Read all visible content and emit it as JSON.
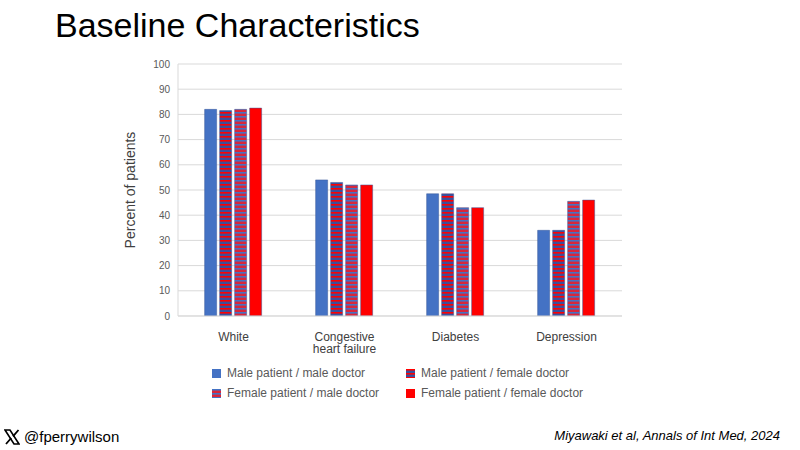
{
  "chart_data": {
    "type": "bar",
    "title": "Baseline Characteristics",
    "y_label": "Percent of patients",
    "categories": [
      "White",
      "Congestive heart failure",
      "Diabetes",
      "Depression"
    ],
    "series": [
      {
        "name": "Male patient / male doctor",
        "color": "#4472c4",
        "values": [
          82,
          54,
          48.5,
          34
        ]
      },
      {
        "name": "Male patient / female doctor",
        "color": "#3b4f9c",
        "values": [
          81.5,
          53,
          48.5,
          34
        ]
      },
      {
        "name": "Female patient / male doctor",
        "color": "#d9263a",
        "values": [
          82,
          52,
          43,
          45.5
        ]
      },
      {
        "name": "Female patient / female doctor",
        "color": "#ff0000",
        "values": [
          82.5,
          52,
          43,
          46
        ]
      }
    ],
    "ylim": [
      0,
      100
    ],
    "yticks": [
      0,
      10,
      20,
      30,
      40,
      50,
      60,
      70,
      80,
      90,
      100
    ],
    "grid": true,
    "legend": "bottom",
    "annotations": [
      "@fperrywilson",
      "Miyawaki et al, Annals of Int Med, 2024"
    ]
  }
}
